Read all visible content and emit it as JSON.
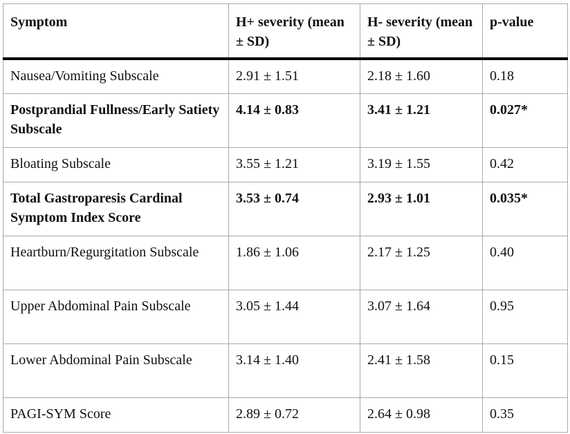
{
  "table": {
    "headers": [
      "Symptom",
      "H+ severity (mean ± SD)",
      "H- severity (mean ± SD)",
      "p-value"
    ],
    "rows": [
      {
        "symptom": "Nausea/Vomiting Subscale",
        "h_plus": "2.91 ± 1.51",
        "h_minus": "2.18 ± 1.60",
        "p": "0.18",
        "bold": false
      },
      {
        "symptom": "Postprandial Fullness/Early Satiety Subscale",
        "h_plus": "4.14 ± 0.83",
        "h_minus": "3.41 ± 1.21",
        "p": "0.027*",
        "bold": true
      },
      {
        "symptom": "Bloating Subscale",
        "h_plus": "3.55 ± 1.21",
        "h_minus": "3.19 ± 1.55",
        "p": "0.42",
        "bold": false
      },
      {
        "symptom": "Total Gastroparesis Cardinal Symptom Index Score",
        "h_plus": "3.53 ± 0.74",
        "h_minus": "2.93 ± 1.01",
        "p": "0.035*",
        "bold": true
      },
      {
        "symptom": "Heartburn/Regurgitation Subscale",
        "h_plus": "1.86 ± 1.06",
        "h_minus": "2.17 ± 1.25",
        "p": "0.40",
        "bold": false
      },
      {
        "symptom": "Upper Abdominal Pain Subscale",
        "h_plus": "3.05 ± 1.44",
        "h_minus": "3.07 ± 1.64",
        "p": "0.95",
        "bold": false
      },
      {
        "symptom": "Lower Abdominal Pain Subscale",
        "h_plus": "3.14 ± 1.40",
        "h_minus": "2.41 ± 1.58",
        "p": "0.15",
        "bold": false
      },
      {
        "symptom": "PAGI-SYM Score",
        "h_plus": "2.89 ± 0.72",
        "h_minus": "2.64 ± 0.98",
        "p": "0.35",
        "bold": false
      }
    ]
  }
}
